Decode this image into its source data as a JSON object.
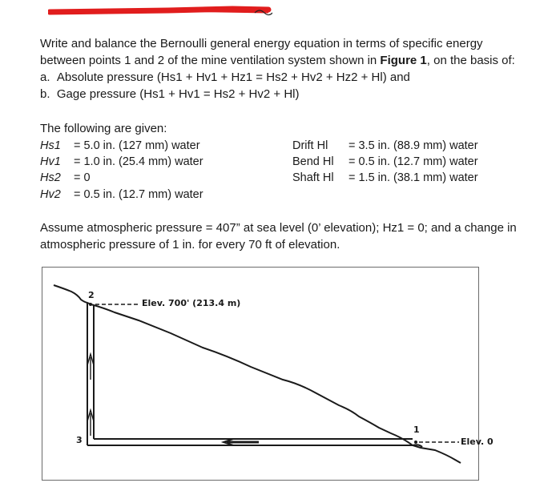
{
  "header_mark": "",
  "problem": {
    "intro_1": "Write and balance the Bernoulli general energy equation in terms of specific energy",
    "intro_2a": "between points 1 and 2 of the mine ventilation system shown in ",
    "intro_2b": "Figure 1",
    "intro_2c": ", on the basis of:",
    "item_a_marker": "a.",
    "item_a_text": "Absolute pressure (Hs1 + Hv1 + Hz1 = Hs2 + Hv2 + Hz2 + Hl) and",
    "item_b_marker": "b.",
    "item_b_text": "Gage pressure (Hs1 + Hv1 = Hs2 + Hv2 + Hl)"
  },
  "given": {
    "heading": "The following are given:",
    "left": [
      {
        "label": "Hs1",
        "value": "= 5.0 in. (127 mm) water"
      },
      {
        "label": "Hv1",
        "value": "= 1.0 in. (25.4 mm) water"
      },
      {
        "label": "Hs2",
        "value": "= 0"
      },
      {
        "label": "Hv2",
        "value": "= 0.5 in. (12.7 mm) water"
      }
    ],
    "right": [
      {
        "label": "Drift Hl",
        "value": "= 3.5 in. (88.9 mm) water"
      },
      {
        "label": "Bend Hl",
        "value": "= 0.5 in. (12.7 mm) water"
      },
      {
        "label": "Shaft Hl",
        "value": "= 1.5 in. (38.1 mm) water"
      }
    ]
  },
  "assume": {
    "line_1": "Assume atmospheric pressure = 407” at sea level (0’ elevation); Hz1 = 0; and a change in",
    "line_2": "atmospheric pressure of 1 in. for every 70 ft of elevation."
  },
  "figure": {
    "point_2": "2",
    "point_1": "1",
    "point_3": "3",
    "elev_top": "Elev. 700' (213.4 m)",
    "elev_bottom": "Elev. 0"
  }
}
